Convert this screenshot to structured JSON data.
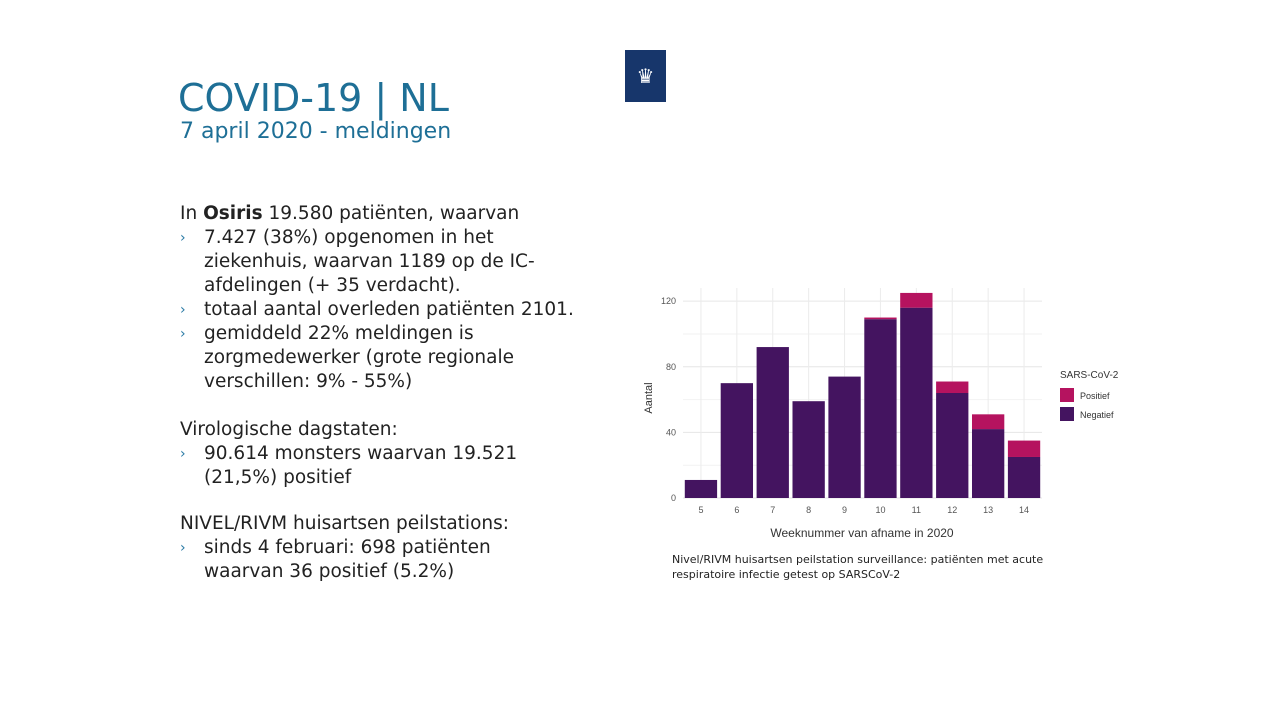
{
  "header": {
    "title": "COVID-19 | NL",
    "subtitle": "7 april 2020 - meldingen",
    "logo": "rijksoverheid-coat-of-arms"
  },
  "osiris": {
    "intro_prefix": "In ",
    "intro_bold": "Osiris",
    "intro_rest": " 19.580 patiënten, waarvan",
    "bullets": [
      "7.427 (38%) opgenomen in het ziekenhuis, waarvan 1189 op de IC-afdelingen (+ 35 verdacht).",
      "totaal aantal overleden patiënten 2101.",
      "gemiddeld 22% meldingen is zorgmedewerker (grote regionale verschillen: 9% - 55%)"
    ]
  },
  "viro": {
    "heading": "Virologische dagstaten:",
    "bullets": [
      "90.614 monsters waarvan 19.521 (21,5%) positief"
    ]
  },
  "nivel": {
    "heading": "NIVEL/RIVM huisartsen peilstations:",
    "bullets": [
      "sinds 4 februari: 698 patiënten waarvan 36 positief (5.2%)"
    ]
  },
  "bullet_marker": "›",
  "caption": "Nivel/RIVM huisartsen peilstation surveillance: patiënten met acute respiratoire infectie getest op SARSCoV-2",
  "chart_data": {
    "type": "bar",
    "stacked": true,
    "categories": [
      "5",
      "6",
      "7",
      "8",
      "9",
      "10",
      "11",
      "12",
      "13",
      "14"
    ],
    "series": [
      {
        "name": "Negatief",
        "color": "#441460",
        "values": [
          11,
          70,
          92,
          59,
          74,
          109,
          116,
          64,
          42,
          25
        ]
      },
      {
        "name": "Positief",
        "color": "#b5135f",
        "values": [
          0,
          0,
          0,
          0,
          0,
          1,
          9,
          7,
          9,
          10
        ]
      }
    ],
    "xlabel": "Weeknummer van afname in 2020",
    "ylabel": "Aantal",
    "ylim": [
      0,
      128
    ],
    "yticks": [
      "0",
      "40",
      "80",
      "120"
    ],
    "legend_title": "SARS-CoV-2",
    "legend_position": "right",
    "grid": true
  }
}
